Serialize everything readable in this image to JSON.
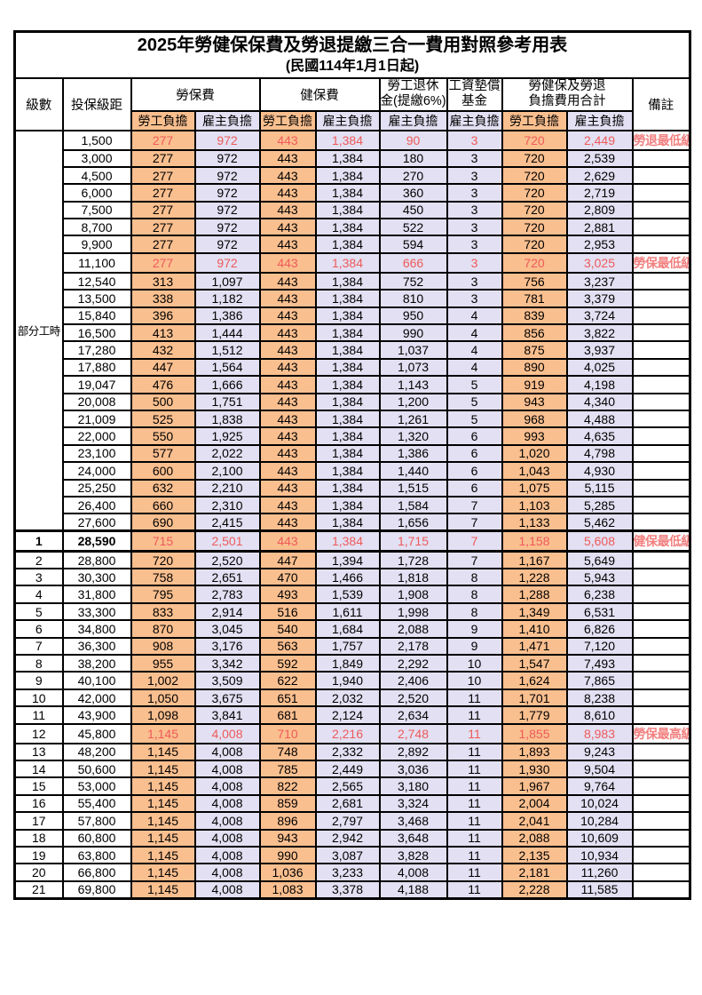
{
  "page": {
    "title": "2025年勞健保保費及勞退提繳三合一費用對照參考用表",
    "subtitle": "(民國114年1月1日起)"
  },
  "colors": {
    "employee_column_bg": "#FABF8F",
    "employer_column_bg": "#E2E0F2",
    "highlight_text": "#EE5A5A",
    "remark_text": "#F28080",
    "border": "#000000"
  },
  "table": {
    "headers": {
      "level": "級數",
      "salary": "投保級距",
      "labor_fee": "勞保費",
      "health_fee": "健保費",
      "pension_line1": "勞工退休",
      "pension_line2": "金(提繳6%)",
      "wage_fund_line1": "工資墊償",
      "wage_fund_line2": "基金",
      "total_line1": "勞健保及勞退",
      "total_line2": "負擔費用合計",
      "remark": "備註",
      "employee": "勞工負擔",
      "employer": "雇主負擔"
    },
    "group_label": "部分工時",
    "group_rowspan": 23,
    "rows": [
      {
        "level": null,
        "salary": "1,500",
        "values": [
          "277",
          "972",
          "443",
          "1,384",
          "90",
          "3",
          "720",
          "2,449"
        ],
        "remark": "勞退最低級距",
        "red": true,
        "bold": false,
        "section": false
      },
      {
        "level": null,
        "salary": "3,000",
        "values": [
          "277",
          "972",
          "443",
          "1,384",
          "180",
          "3",
          "720",
          "2,539"
        ],
        "remark": "",
        "red": false,
        "bold": false,
        "section": false
      },
      {
        "level": null,
        "salary": "4,500",
        "values": [
          "277",
          "972",
          "443",
          "1,384",
          "270",
          "3",
          "720",
          "2,629"
        ],
        "remark": "",
        "red": false,
        "bold": false,
        "section": false
      },
      {
        "level": null,
        "salary": "6,000",
        "values": [
          "277",
          "972",
          "443",
          "1,384",
          "360",
          "3",
          "720",
          "2,719"
        ],
        "remark": "",
        "red": false,
        "bold": false,
        "section": false
      },
      {
        "level": null,
        "salary": "7,500",
        "values": [
          "277",
          "972",
          "443",
          "1,384",
          "450",
          "3",
          "720",
          "2,809"
        ],
        "remark": "",
        "red": false,
        "bold": false,
        "section": false
      },
      {
        "level": null,
        "salary": "8,700",
        "values": [
          "277",
          "972",
          "443",
          "1,384",
          "522",
          "3",
          "720",
          "2,881"
        ],
        "remark": "",
        "red": false,
        "bold": false,
        "section": false
      },
      {
        "level": null,
        "salary": "9,900",
        "values": [
          "277",
          "972",
          "443",
          "1,384",
          "594",
          "3",
          "720",
          "2,953"
        ],
        "remark": "",
        "red": false,
        "bold": false,
        "section": false
      },
      {
        "level": null,
        "salary": "11,100",
        "values": [
          "277",
          "972",
          "443",
          "1,384",
          "666",
          "3",
          "720",
          "3,025"
        ],
        "remark": "勞保最低級距",
        "red": true,
        "bold": false,
        "section": false
      },
      {
        "level": null,
        "salary": "12,540",
        "values": [
          "313",
          "1,097",
          "443",
          "1,384",
          "752",
          "3",
          "756",
          "3,237"
        ],
        "remark": "",
        "red": false,
        "bold": false,
        "section": false
      },
      {
        "level": null,
        "salary": "13,500",
        "values": [
          "338",
          "1,182",
          "443",
          "1,384",
          "810",
          "3",
          "781",
          "3,379"
        ],
        "remark": "",
        "red": false,
        "bold": false,
        "section": false
      },
      {
        "level": null,
        "salary": "15,840",
        "values": [
          "396",
          "1,386",
          "443",
          "1,384",
          "950",
          "4",
          "839",
          "3,724"
        ],
        "remark": "",
        "red": false,
        "bold": false,
        "section": false
      },
      {
        "level": null,
        "salary": "16,500",
        "values": [
          "413",
          "1,444",
          "443",
          "1,384",
          "990",
          "4",
          "856",
          "3,822"
        ],
        "remark": "",
        "red": false,
        "bold": false,
        "section": false
      },
      {
        "level": null,
        "salary": "17,280",
        "values": [
          "432",
          "1,512",
          "443",
          "1,384",
          "1,037",
          "4",
          "875",
          "3,937"
        ],
        "remark": "",
        "red": false,
        "bold": false,
        "section": false
      },
      {
        "level": null,
        "salary": "17,880",
        "values": [
          "447",
          "1,564",
          "443",
          "1,384",
          "1,073",
          "4",
          "890",
          "4,025"
        ],
        "remark": "",
        "red": false,
        "bold": false,
        "section": false
      },
      {
        "level": null,
        "salary": "19,047",
        "values": [
          "476",
          "1,666",
          "443",
          "1,384",
          "1,143",
          "5",
          "919",
          "4,198"
        ],
        "remark": "",
        "red": false,
        "bold": false,
        "section": false
      },
      {
        "level": null,
        "salary": "20,008",
        "values": [
          "500",
          "1,751",
          "443",
          "1,384",
          "1,200",
          "5",
          "943",
          "4,340"
        ],
        "remark": "",
        "red": false,
        "bold": false,
        "section": false
      },
      {
        "level": null,
        "salary": "21,009",
        "values": [
          "525",
          "1,838",
          "443",
          "1,384",
          "1,261",
          "5",
          "968",
          "4,488"
        ],
        "remark": "",
        "red": false,
        "bold": false,
        "section": false
      },
      {
        "level": null,
        "salary": "22,000",
        "values": [
          "550",
          "1,925",
          "443",
          "1,384",
          "1,320",
          "6",
          "993",
          "4,635"
        ],
        "remark": "",
        "red": false,
        "bold": false,
        "section": false
      },
      {
        "level": null,
        "salary": "23,100",
        "values": [
          "577",
          "2,022",
          "443",
          "1,384",
          "1,386",
          "6",
          "1,020",
          "4,798"
        ],
        "remark": "",
        "red": false,
        "bold": false,
        "section": false
      },
      {
        "level": null,
        "salary": "24,000",
        "values": [
          "600",
          "2,100",
          "443",
          "1,384",
          "1,440",
          "6",
          "1,043",
          "4,930"
        ],
        "remark": "",
        "red": false,
        "bold": false,
        "section": false
      },
      {
        "level": null,
        "salary": "25,250",
        "values": [
          "632",
          "2,210",
          "443",
          "1,384",
          "1,515",
          "6",
          "1,075",
          "5,115"
        ],
        "remark": "",
        "red": false,
        "bold": false,
        "section": false
      },
      {
        "level": null,
        "salary": "26,400",
        "values": [
          "660",
          "2,310",
          "443",
          "1,384",
          "1,584",
          "7",
          "1,103",
          "5,285"
        ],
        "remark": "",
        "red": false,
        "bold": false,
        "section": false
      },
      {
        "level": null,
        "salary": "27,600",
        "values": [
          "690",
          "2,415",
          "443",
          "1,384",
          "1,656",
          "7",
          "1,133",
          "5,462"
        ],
        "remark": "",
        "red": false,
        "bold": false,
        "section": false
      },
      {
        "level": "1",
        "salary": "28,590",
        "values": [
          "715",
          "2,501",
          "443",
          "1,384",
          "1,715",
          "7",
          "1,158",
          "5,608"
        ],
        "remark": "健保最低級距",
        "red": true,
        "bold": true,
        "section": true
      },
      {
        "level": "2",
        "salary": "28,800",
        "values": [
          "720",
          "2,520",
          "447",
          "1,394",
          "1,728",
          "7",
          "1,167",
          "5,649"
        ],
        "remark": "",
        "red": false,
        "bold": false,
        "section": false
      },
      {
        "level": "3",
        "salary": "30,300",
        "values": [
          "758",
          "2,651",
          "470",
          "1,466",
          "1,818",
          "8",
          "1,228",
          "5,943"
        ],
        "remark": "",
        "red": false,
        "bold": false,
        "section": false
      },
      {
        "level": "4",
        "salary": "31,800",
        "values": [
          "795",
          "2,783",
          "493",
          "1,539",
          "1,908",
          "8",
          "1,288",
          "6,238"
        ],
        "remark": "",
        "red": false,
        "bold": false,
        "section": false
      },
      {
        "level": "5",
        "salary": "33,300",
        "values": [
          "833",
          "2,914",
          "516",
          "1,611",
          "1,998",
          "8",
          "1,349",
          "6,531"
        ],
        "remark": "",
        "red": false,
        "bold": false,
        "section": false
      },
      {
        "level": "6",
        "salary": "34,800",
        "values": [
          "870",
          "3,045",
          "540",
          "1,684",
          "2,088",
          "9",
          "1,410",
          "6,826"
        ],
        "remark": "",
        "red": false,
        "bold": false,
        "section": false
      },
      {
        "level": "7",
        "salary": "36,300",
        "values": [
          "908",
          "3,176",
          "563",
          "1,757",
          "2,178",
          "9",
          "1,471",
          "7,120"
        ],
        "remark": "",
        "red": false,
        "bold": false,
        "section": false
      },
      {
        "level": "8",
        "salary": "38,200",
        "values": [
          "955",
          "3,342",
          "592",
          "1,849",
          "2,292",
          "10",
          "1,547",
          "7,493"
        ],
        "remark": "",
        "red": false,
        "bold": false,
        "section": false
      },
      {
        "level": "9",
        "salary": "40,100",
        "values": [
          "1,002",
          "3,509",
          "622",
          "1,940",
          "2,406",
          "10",
          "1,624",
          "7,865"
        ],
        "remark": "",
        "red": false,
        "bold": false,
        "section": false
      },
      {
        "level": "10",
        "salary": "42,000",
        "values": [
          "1,050",
          "3,675",
          "651",
          "2,032",
          "2,520",
          "11",
          "1,701",
          "8,238"
        ],
        "remark": "",
        "red": false,
        "bold": false,
        "section": false
      },
      {
        "level": "11",
        "salary": "43,900",
        "values": [
          "1,098",
          "3,841",
          "681",
          "2,124",
          "2,634",
          "11",
          "1,779",
          "8,610"
        ],
        "remark": "",
        "red": false,
        "bold": false,
        "section": false
      },
      {
        "level": "12",
        "salary": "45,800",
        "values": [
          "1,145",
          "4,008",
          "710",
          "2,216",
          "2,748",
          "11",
          "1,855",
          "8,983"
        ],
        "remark": "勞保最高級距",
        "red": true,
        "bold": false,
        "section": false
      },
      {
        "level": "13",
        "salary": "48,200",
        "values": [
          "1,145",
          "4,008",
          "748",
          "2,332",
          "2,892",
          "11",
          "1,893",
          "9,243"
        ],
        "remark": "",
        "red": false,
        "bold": false,
        "section": false
      },
      {
        "level": "14",
        "salary": "50,600",
        "values": [
          "1,145",
          "4,008",
          "785",
          "2,449",
          "3,036",
          "11",
          "1,930",
          "9,504"
        ],
        "remark": "",
        "red": false,
        "bold": false,
        "section": false
      },
      {
        "level": "15",
        "salary": "53,000",
        "values": [
          "1,145",
          "4,008",
          "822",
          "2,565",
          "3,180",
          "11",
          "1,967",
          "9,764"
        ],
        "remark": "",
        "red": false,
        "bold": false,
        "section": false
      },
      {
        "level": "16",
        "salary": "55,400",
        "values": [
          "1,145",
          "4,008",
          "859",
          "2,681",
          "3,324",
          "11",
          "2,004",
          "10,024"
        ],
        "remark": "",
        "red": false,
        "bold": false,
        "section": false
      },
      {
        "level": "17",
        "salary": "57,800",
        "values": [
          "1,145",
          "4,008",
          "896",
          "2,797",
          "3,468",
          "11",
          "2,041",
          "10,284"
        ],
        "remark": "",
        "red": false,
        "bold": false,
        "section": false
      },
      {
        "level": "18",
        "salary": "60,800",
        "values": [
          "1,145",
          "4,008",
          "943",
          "2,942",
          "3,648",
          "11",
          "2,088",
          "10,609"
        ],
        "remark": "",
        "red": false,
        "bold": false,
        "section": false
      },
      {
        "level": "19",
        "salary": "63,800",
        "values": [
          "1,145",
          "4,008",
          "990",
          "3,087",
          "3,828",
          "11",
          "2,135",
          "10,934"
        ],
        "remark": "",
        "red": false,
        "bold": false,
        "section": false
      },
      {
        "level": "20",
        "salary": "66,800",
        "values": [
          "1,145",
          "4,008",
          "1,036",
          "3,233",
          "4,008",
          "11",
          "2,181",
          "11,260"
        ],
        "remark": "",
        "red": false,
        "bold": false,
        "section": false
      },
      {
        "level": "21",
        "salary": "69,800",
        "values": [
          "1,145",
          "4,008",
          "1,083",
          "3,378",
          "4,188",
          "11",
          "2,228",
          "11,585"
        ],
        "remark": "",
        "red": false,
        "bold": false,
        "section": false
      }
    ]
  }
}
